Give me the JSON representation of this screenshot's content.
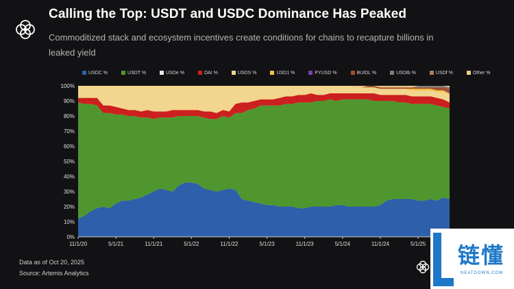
{
  "header": {
    "title": "Calling the Top: USDT and USDC Dominance Has Peaked",
    "subtitle": "Commoditized stack and ecosystem incentives create conditions for chains to recapture billions in leaked yield",
    "logo_icon": "interlocking-rings-logo"
  },
  "footer": {
    "data_as_of": "Data as of Oct 20, 2025",
    "source": "Source: Artemis Analytics",
    "logo_icon": "interlocking-rings-logo"
  },
  "watermark": {
    "text": "链懂",
    "subtext": "NEATDOWN.COM",
    "color": "#1e78c8"
  },
  "chart_data": {
    "type": "area",
    "stacked": true,
    "x": [
      "11/1/20",
      "12/1/20",
      "1/1/21",
      "2/1/21",
      "3/1/21",
      "4/1/21",
      "5/1/21",
      "6/1/21",
      "7/1/21",
      "8/1/21",
      "9/1/21",
      "10/1/21",
      "11/1/21",
      "12/1/21",
      "1/1/22",
      "2/1/22",
      "3/1/22",
      "4/1/22",
      "5/1/22",
      "6/1/22",
      "7/1/22",
      "8/1/22",
      "9/1/22",
      "10/1/22",
      "11/1/22",
      "12/1/22",
      "1/1/23",
      "2/1/23",
      "3/1/23",
      "4/1/23",
      "5/1/23",
      "6/1/23",
      "7/1/23",
      "8/1/23",
      "9/1/23",
      "10/1/23",
      "11/1/23",
      "12/1/23",
      "1/1/24",
      "2/1/24",
      "3/1/24",
      "4/1/24",
      "5/1/24",
      "6/1/24",
      "7/1/24",
      "8/1/24",
      "9/1/24",
      "10/1/24",
      "11/1/24",
      "12/1/24",
      "1/1/25",
      "2/1/25",
      "3/1/25",
      "4/1/25",
      "5/1/25",
      "6/1/25",
      "7/1/25",
      "8/1/25",
      "9/1/25",
      "10/1/25"
    ],
    "x_ticks": [
      "11/1/20",
      "5/1/21",
      "11/1/21",
      "5/1/22",
      "11/1/22",
      "5/1/23",
      "11/1/23",
      "5/1/24",
      "11/1/24",
      "5/1/25"
    ],
    "ylim": [
      0,
      100
    ],
    "y_ticks": [
      "0%",
      "10%",
      "20%",
      "30%",
      "40%",
      "50%",
      "60%",
      "70%",
      "80%",
      "90%",
      "100%"
    ],
    "legend_position": "top",
    "series": [
      {
        "name": "USDC %",
        "color": "#2e5faa",
        "values": [
          12,
          14,
          17,
          19,
          20,
          19,
          22,
          24,
          24,
          25,
          26,
          28,
          30,
          32,
          31,
          30,
          34,
          36,
          36,
          35,
          32,
          31,
          30,
          31,
          32,
          31,
          25,
          24,
          23,
          22,
          21,
          21,
          20,
          20,
          20,
          19,
          19,
          20,
          20,
          20,
          20,
          21,
          21,
          20,
          20,
          20,
          20,
          20,
          21,
          24,
          25,
          25,
          25,
          25,
          24,
          24,
          25,
          24,
          26,
          25
        ]
      },
      {
        "name": "USDT %",
        "color": "#4f962f",
        "values": [
          77,
          74,
          71,
          68,
          62,
          63,
          59,
          57,
          56,
          55,
          53,
          51,
          48,
          47,
          48,
          49,
          46,
          44,
          44,
          45,
          47,
          47,
          48,
          49,
          47,
          51,
          57,
          60,
          62,
          65,
          66,
          66,
          67,
          68,
          68,
          70,
          70,
          69,
          70,
          70,
          71,
          69,
          70,
          71,
          71,
          71,
          71,
          70,
          69,
          66,
          65,
          64,
          64,
          63,
          64,
          64,
          63,
          63,
          60,
          60
        ]
      },
      {
        "name": "USDe %",
        "color": "#e8e8e8",
        "values": [
          0,
          0,
          0,
          0,
          0,
          0,
          0,
          0,
          0,
          0,
          0,
          0,
          0,
          0,
          0,
          0,
          0,
          0,
          0,
          0,
          0,
          0,
          0,
          0,
          0,
          0,
          0,
          0,
          0,
          0,
          0,
          0,
          0,
          0,
          0,
          0,
          0,
          0,
          0,
          0,
          0,
          0,
          0,
          0,
          0,
          0,
          0,
          0,
          0,
          0,
          0,
          0,
          0,
          0,
          0,
          0,
          0,
          0,
          0,
          0
        ]
      },
      {
        "name": "DAI %",
        "color": "#cc1f1f",
        "values": [
          3,
          4,
          4,
          5,
          5,
          5,
          5,
          4,
          4,
          4,
          4,
          5,
          5,
          4,
          4,
          5,
          4,
          4,
          4,
          4,
          4,
          5,
          4,
          4,
          4,
          6,
          7,
          5,
          5,
          4,
          4,
          4,
          5,
          5,
          5,
          5,
          5,
          6,
          4,
          4,
          4,
          5,
          4,
          4,
          4,
          4,
          4,
          5,
          4,
          4,
          4,
          5,
          5,
          5,
          5,
          5,
          5,
          5,
          5,
          4
        ]
      },
      {
        "name": "USDS %",
        "color": "#f2d58e",
        "values": [
          8,
          8,
          8,
          8,
          13,
          13,
          14,
          15,
          16,
          16,
          17,
          16,
          17,
          17,
          17,
          16,
          16,
          16,
          16,
          16,
          17,
          17,
          18,
          16,
          17,
          12,
          11,
          11,
          10,
          9,
          9,
          9,
          8,
          7,
          7,
          6,
          6,
          5,
          6,
          6,
          5,
          5,
          5,
          5,
          4,
          4,
          4,
          4,
          4,
          4,
          4,
          4,
          4,
          4,
          4,
          4,
          4,
          4,
          5,
          5
        ]
      },
      {
        "name": "USD1 %",
        "color": "#f6c343",
        "values": [
          0,
          0,
          0,
          0,
          0,
          0,
          0,
          0,
          0,
          0,
          0,
          0,
          0,
          0,
          0,
          0,
          0,
          0,
          0,
          0,
          0,
          0,
          0,
          0,
          0,
          0,
          0,
          0,
          0,
          0,
          0,
          0,
          0,
          0,
          0,
          0,
          0,
          0,
          0,
          0,
          0,
          0,
          0,
          0,
          0,
          0,
          0,
          0,
          0,
          0,
          0,
          0,
          0,
          1,
          1,
          1,
          1,
          1,
          1,
          1
        ]
      },
      {
        "name": "PYUSD %",
        "color": "#7b3fa8",
        "values": [
          0,
          0,
          0,
          0,
          0,
          0,
          0,
          0,
          0,
          0,
          0,
          0,
          0,
          0,
          0,
          0,
          0,
          0,
          0,
          0,
          0,
          0,
          0,
          0,
          0,
          0,
          0,
          0,
          0,
          0,
          0,
          0,
          0,
          0,
          0,
          0,
          0,
          0,
          0,
          0,
          0,
          0,
          0,
          0,
          0,
          0,
          0,
          0,
          0,
          0,
          0,
          0,
          0,
          0,
          0,
          0,
          0,
          0,
          0,
          1
        ]
      },
      {
        "name": "BUIDL %",
        "color": "#a0522d",
        "values": [
          0,
          0,
          0,
          0,
          0,
          0,
          0,
          0,
          0,
          0,
          0,
          0,
          0,
          0,
          0,
          0,
          0,
          0,
          0,
          0,
          0,
          0,
          0,
          0,
          0,
          0,
          0,
          0,
          0,
          0,
          0,
          0,
          0,
          0,
          0,
          0,
          0,
          0,
          0,
          0,
          0,
          0,
          0,
          0,
          0,
          0,
          1,
          1,
          1,
          1,
          1,
          1,
          1,
          1,
          1,
          1,
          1,
          2,
          2,
          2
        ]
      },
      {
        "name": "USDtb %",
        "color": "#7d7d7d",
        "values": [
          0,
          0,
          0,
          0,
          0,
          0,
          0,
          0,
          0,
          0,
          0,
          0,
          0,
          0,
          0,
          0,
          0,
          0,
          0,
          0,
          0,
          0,
          0,
          0,
          0,
          0,
          0,
          0,
          0,
          0,
          0,
          0,
          0,
          0,
          0,
          0,
          0,
          0,
          0,
          0,
          0,
          0,
          0,
          0,
          0,
          0,
          0,
          0,
          0,
          0,
          0,
          0,
          0,
          0,
          1,
          1,
          1,
          1,
          1,
          1
        ]
      },
      {
        "name": "USDf %",
        "color": "#b07a5a",
        "values": [
          0,
          0,
          0,
          0,
          0,
          0,
          0,
          0,
          0,
          0,
          0,
          0,
          0,
          0,
          0,
          0,
          0,
          0,
          0,
          0,
          0,
          0,
          0,
          0,
          0,
          0,
          0,
          0,
          0,
          0,
          0,
          0,
          0,
          0,
          0,
          0,
          0,
          0,
          0,
          0,
          0,
          0,
          0,
          0,
          0,
          0,
          0,
          0,
          0,
          0,
          0,
          0,
          0,
          0,
          0,
          0,
          0,
          0,
          0,
          0
        ]
      },
      {
        "name": "Other %",
        "color": "#f0c98a",
        "values": [
          0,
          0,
          0,
          0,
          0,
          0,
          0,
          0,
          0,
          0,
          0,
          0,
          0,
          0,
          0,
          0,
          0,
          0,
          0,
          0,
          0,
          0,
          0,
          0,
          0,
          0,
          0,
          0,
          0,
          0,
          0,
          0,
          0,
          0,
          0,
          0,
          0,
          0,
          0,
          0,
          0,
          0,
          0,
          0,
          1,
          1,
          0,
          0,
          1,
          1,
          1,
          1,
          1,
          1,
          0,
          0,
          0,
          0,
          0,
          1
        ]
      }
    ]
  }
}
